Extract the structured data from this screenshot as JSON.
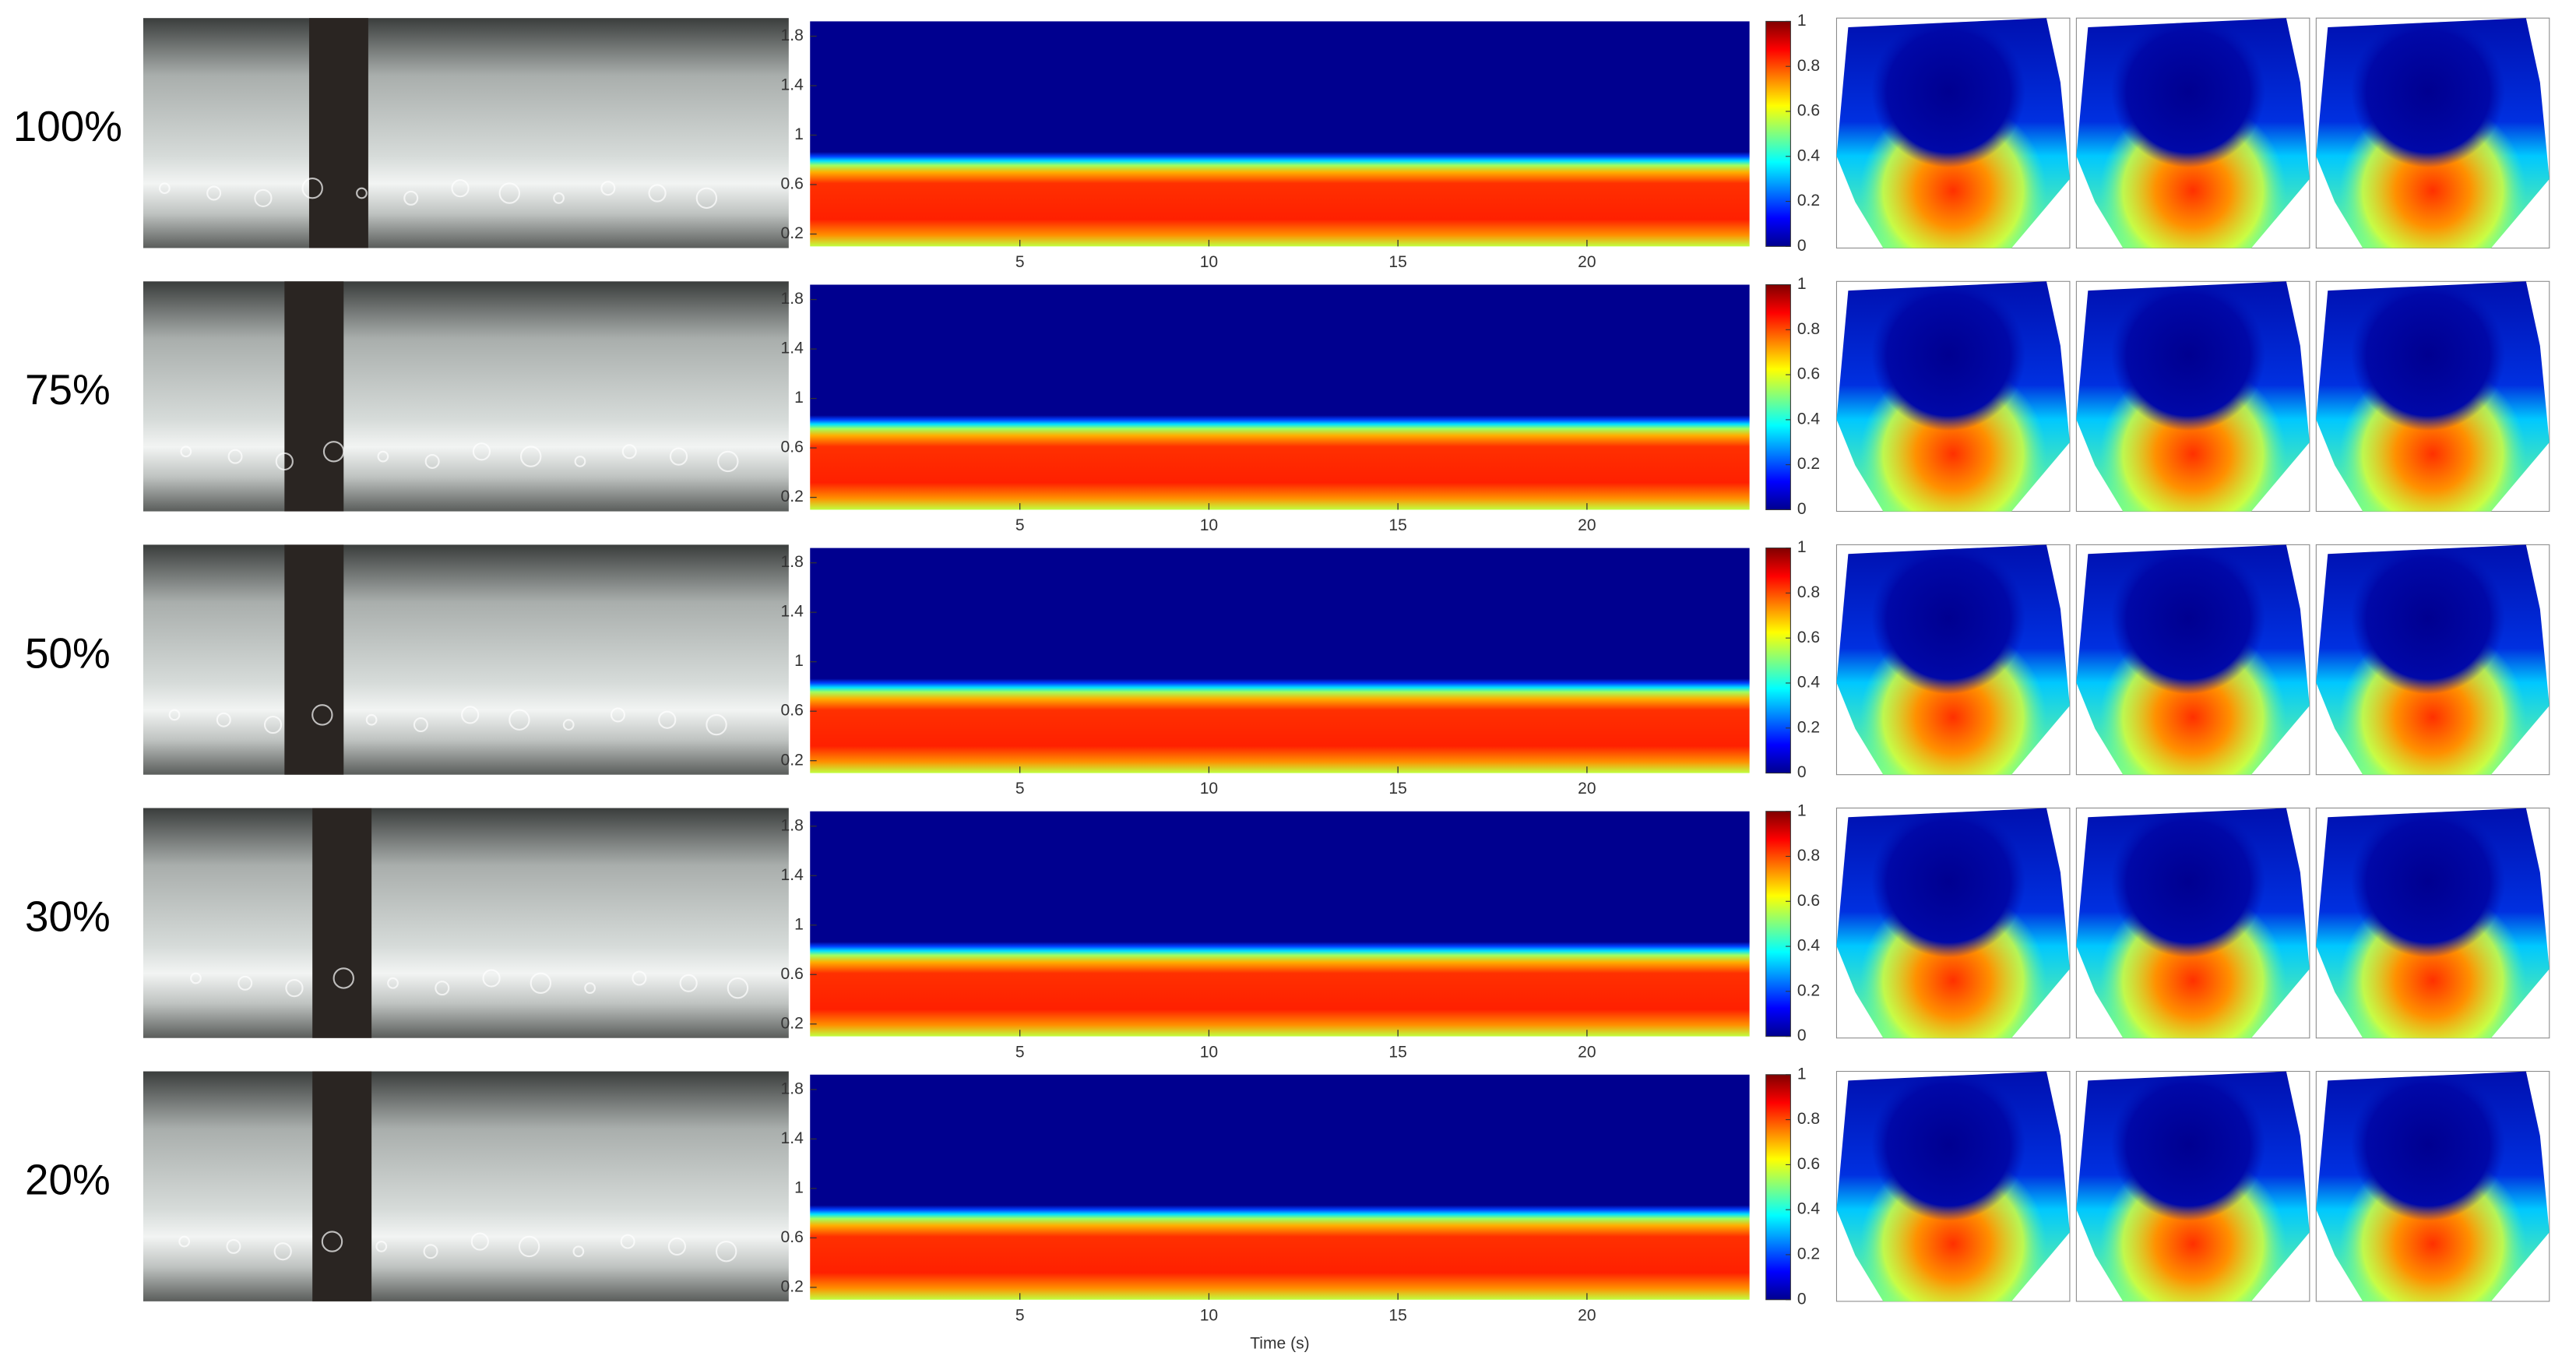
{
  "rows": [
    {
      "label": "100%"
    },
    {
      "label": "75%"
    },
    {
      "label": "50%"
    },
    {
      "label": "30%"
    },
    {
      "label": "20%"
    }
  ],
  "heatmap": {
    "ylim": [
      0.1,
      1.92
    ],
    "yticks": [
      0.2,
      0.6,
      1,
      1.4,
      1.8
    ],
    "xlim": [
      -0.55,
      24.3
    ],
    "xticks": [
      5,
      10,
      15,
      20
    ],
    "xlabel": "Time (s)"
  },
  "colorbar": {
    "lim": [
      0,
      1
    ],
    "ticks": [
      0,
      0.2,
      0.4,
      0.6,
      0.8,
      1
    ]
  }
}
